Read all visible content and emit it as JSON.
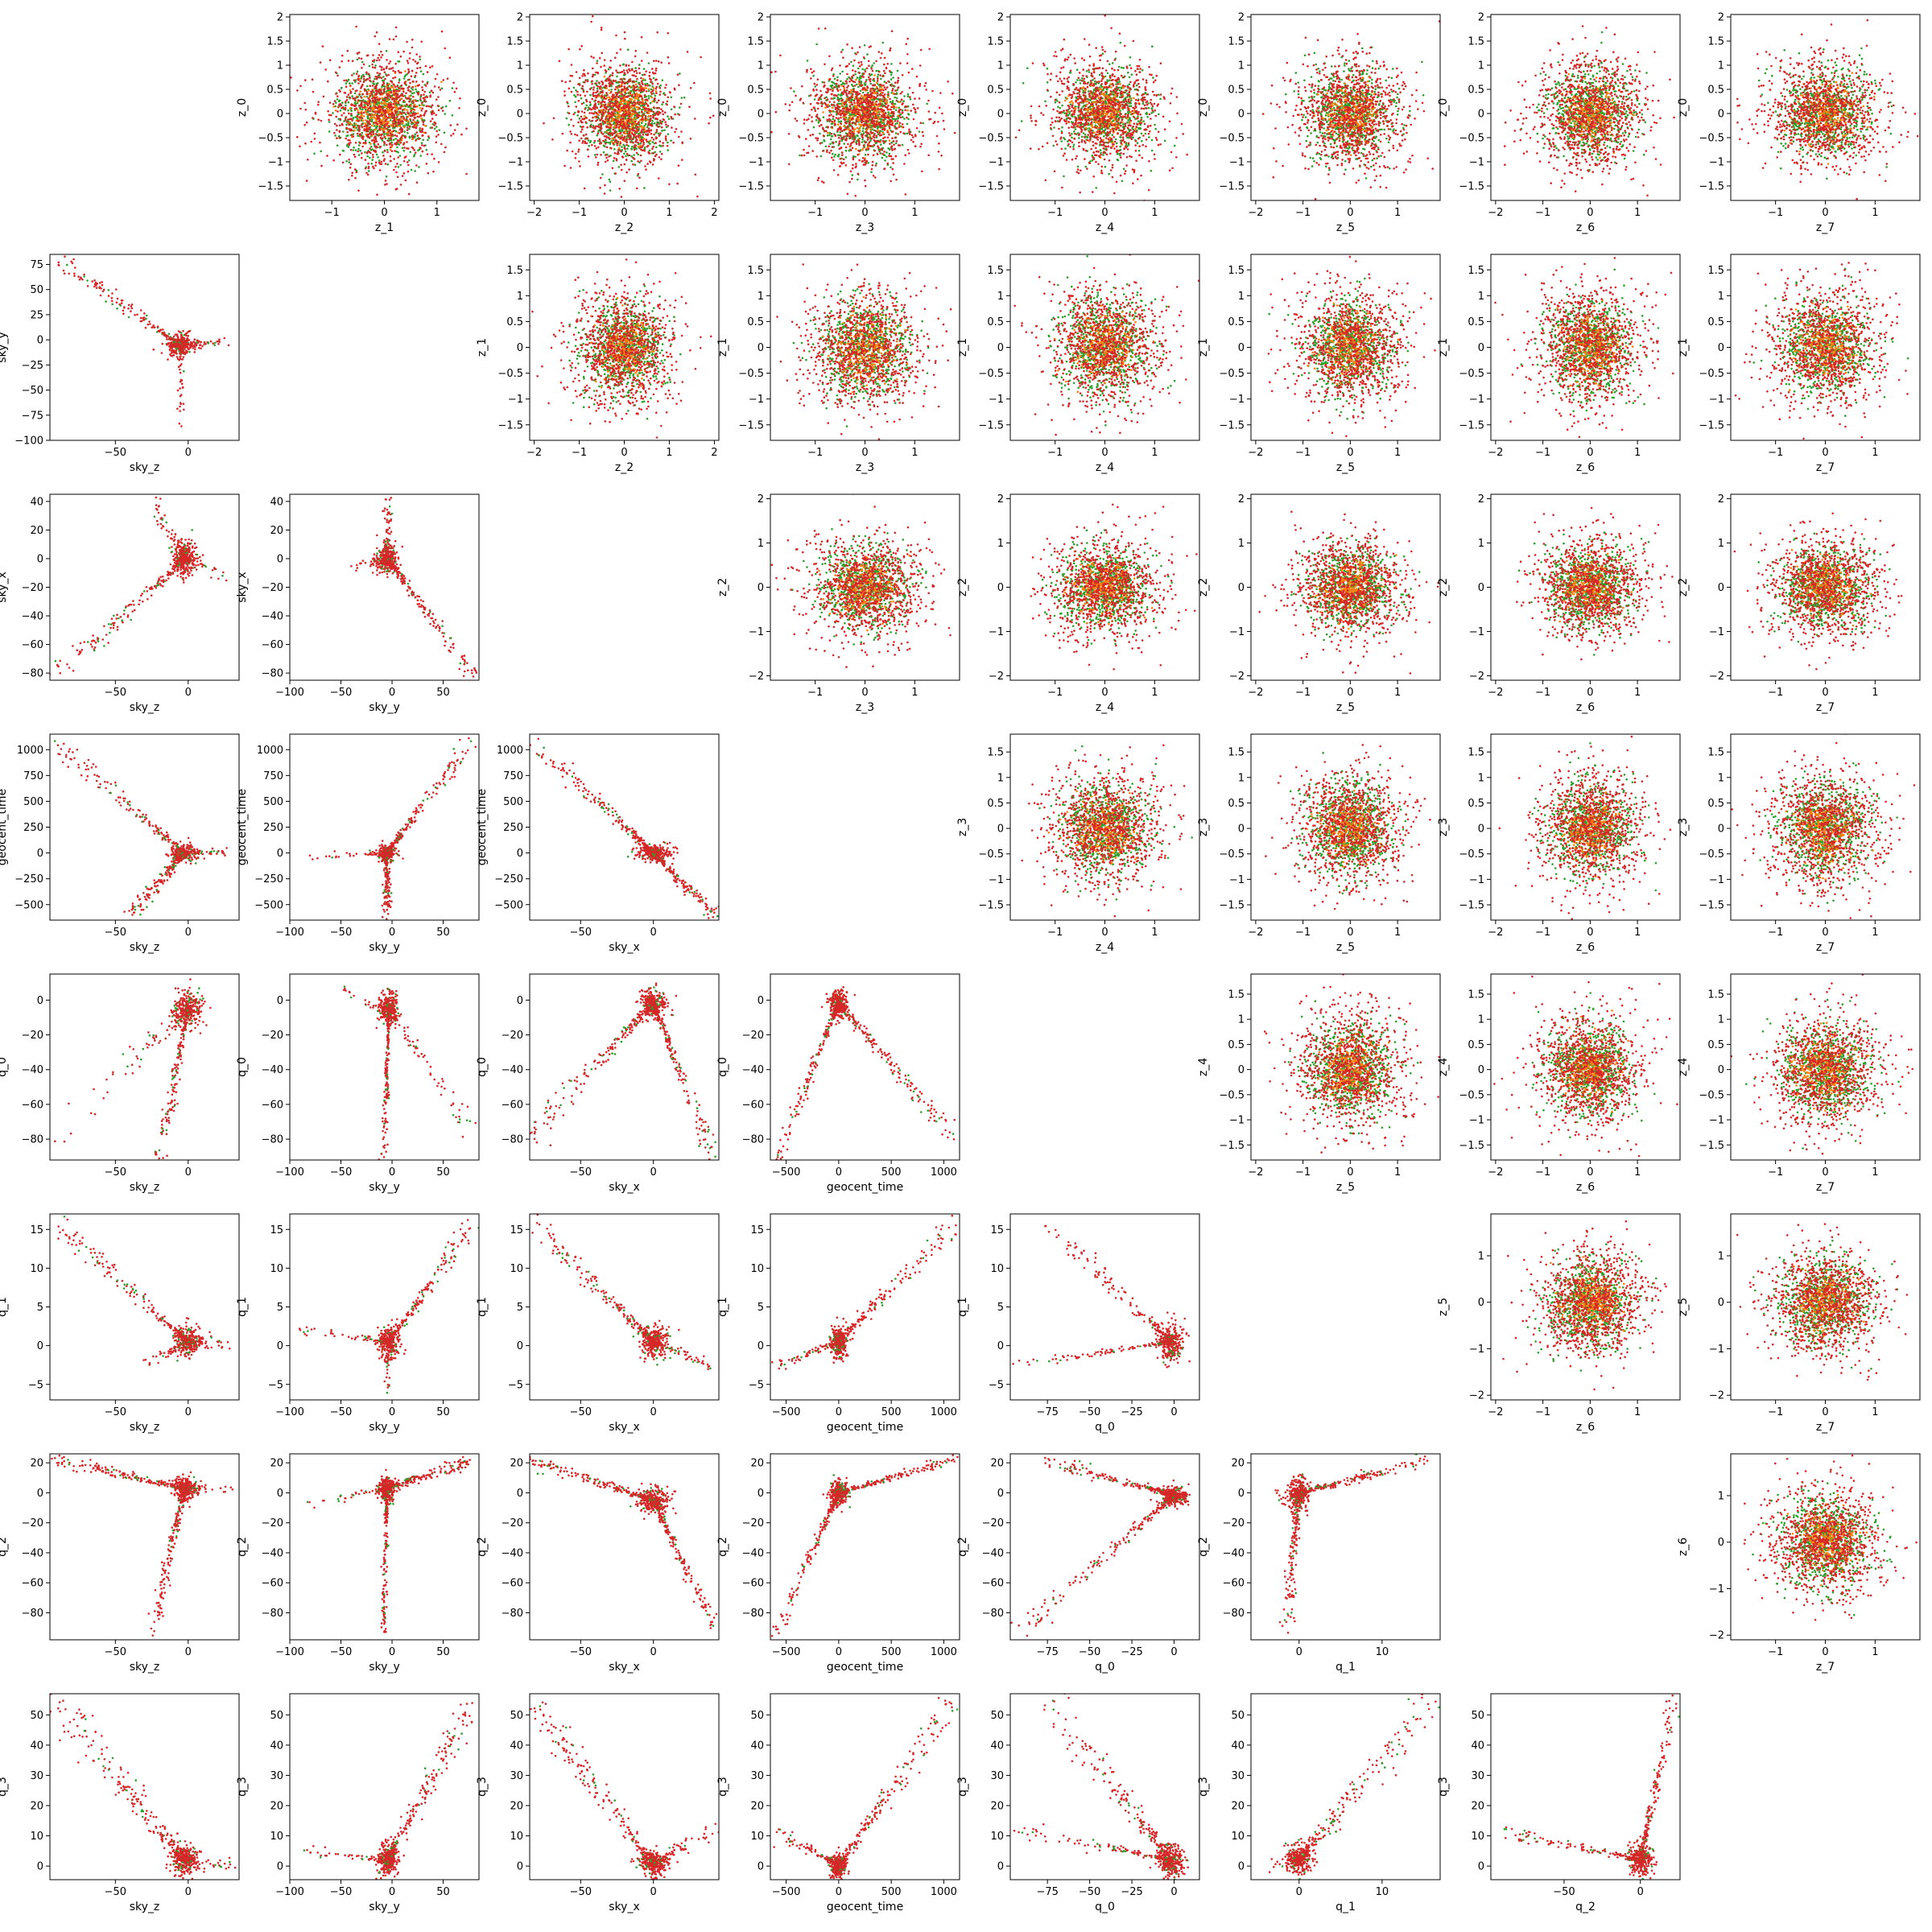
{
  "colors": {
    "green": "#2ca02c",
    "orange": "#ff7f0e",
    "red": "#d62728",
    "frame": "#000000"
  },
  "chart_data": {
    "type": "scatter",
    "layout": "8x8 pair-plot grid; lower triangle shows physical parameters, upper triangle shows latent z variables; diagonal empty",
    "variables": {
      "sky_z": {
        "label": "sky_z",
        "range": [
          -95,
          35
        ],
        "ticks": [
          -50,
          0
        ]
      },
      "sky_y": {
        "label": "sky_y",
        "range": [
          -100,
          85
        ],
        "ticks": [
          -100,
          -50,
          0,
          50
        ]
      },
      "sky_x": {
        "label": "sky_x",
        "range": [
          -85,
          45
        ],
        "ticks": [
          -50,
          0
        ]
      },
      "geocent_time": {
        "label": "geocent_time",
        "range": [
          -650,
          1150
        ],
        "ticks": [
          -500,
          0,
          500,
          1000
        ]
      },
      "q_0": {
        "label": "q_0",
        "range": [
          -97,
          15
        ],
        "ticks": [
          -75,
          -50,
          -25,
          0
        ]
      },
      "q_1": {
        "label": "q_1",
        "range": [
          -5.8,
          17
        ],
        "ticks": [
          0,
          10
        ]
      },
      "q_2": {
        "label": "q_2",
        "range": [
          -98,
          26
        ],
        "ticks": [
          -50,
          0
        ]
      },
      "q_3": {
        "label": "q_3",
        "range": [
          -4.5,
          57
        ],
        "ticks": [
          0,
          10,
          20,
          30,
          40,
          50
        ]
      },
      "q_3y": {
        "label": "q_3",
        "range": [
          -4.5,
          57
        ],
        "ticks": [
          0,
          10,
          20,
          30,
          40,
          50
        ]
      },
      "sky_y_v": {
        "label": "sky_y",
        "range": [
          -100,
          85
        ],
        "ticks": [
          -100,
          -75,
          -50,
          -25,
          0,
          25,
          50,
          75
        ]
      },
      "sky_x_v": {
        "label": "sky_x",
        "range": [
          -85,
          45
        ],
        "ticks": [
          -80,
          -60,
          -40,
          -20,
          0,
          20,
          40
        ]
      },
      "geocent_time_v": {
        "label": "geocent_time",
        "range": [
          -650,
          1150
        ],
        "ticks": [
          -500,
          -250,
          0,
          250,
          500,
          750,
          1000
        ]
      },
      "q_0_v": {
        "label": "q_0",
        "range": [
          -92,
          15
        ],
        "ticks": [
          -80,
          -60,
          -40,
          -20,
          0
        ]
      },
      "q_1_v": {
        "label": "q_1",
        "range": [
          -7,
          17
        ],
        "ticks": [
          -5,
          0,
          5,
          10,
          15
        ]
      },
      "q_2_v": {
        "label": "q_2",
        "range": [
          -98,
          26
        ],
        "ticks": [
          -80,
          -60,
          -40,
          -20,
          0,
          20
        ]
      },
      "z_0": {
        "label": "z_0",
        "range": [
          -1.8,
          2.05
        ],
        "ticks": [
          -1.5,
          -1.0,
          -0.5,
          0.0,
          0.5,
          1.0,
          1.5,
          2.0
        ]
      },
      "z_1": {
        "label": "z_1",
        "range": [
          -1.8,
          1.8
        ],
        "ticks": [
          -1.5,
          -1.0,
          -0.5,
          0.0,
          0.5,
          1.0,
          1.5
        ]
      },
      "z_1x": {
        "label": "z_1",
        "range": [
          -1.8,
          1.8
        ],
        "ticks": [
          -1,
          0,
          1
        ]
      },
      "z_2": {
        "label": "z_2",
        "range": [
          -2.1,
          2.1
        ],
        "ticks": [
          -2,
          -1,
          0,
          1,
          2
        ]
      },
      "z_3": {
        "label": "z_3",
        "range": [
          -1.9,
          1.9
        ],
        "ticks": [
          -1,
          0,
          1
        ]
      },
      "z_3y": {
        "label": "z_3",
        "range": [
          -1.8,
          1.85
        ],
        "ticks": [
          -1.5,
          -1.0,
          -0.5,
          0.0,
          0.5,
          1.0,
          1.5
        ]
      },
      "z_4": {
        "label": "z_4",
        "range": [
          -1.9,
          1.9
        ],
        "ticks": [
          -1,
          0,
          1
        ]
      },
      "z_4y": {
        "label": "z_4",
        "range": [
          -1.8,
          1.9
        ],
        "ticks": [
          -1.5,
          -1.0,
          -0.5,
          0.0,
          0.5,
          1.0,
          1.5
        ]
      },
      "z_5": {
        "label": "z_5",
        "range": [
          -2.1,
          1.9
        ],
        "ticks": [
          -2,
          -1,
          0,
          1
        ]
      },
      "z_5y": {
        "label": "z_5",
        "range": [
          -2.1,
          1.9
        ],
        "ticks": [
          -2,
          -1,
          0,
          1
        ]
      },
      "z_6": {
        "label": "z_6",
        "range": [
          -2.1,
          1.9
        ],
        "ticks": [
          -2,
          -1,
          0,
          1
        ]
      },
      "z_6y": {
        "label": "z_6",
        "range": [
          -2.1,
          1.9
        ],
        "ticks": [
          -2,
          -1,
          0,
          1
        ]
      },
      "z_7": {
        "label": "z_7",
        "range": [
          -1.9,
          1.9
        ],
        "ticks": [
          -1,
          0,
          1
        ]
      }
    },
    "panels": [
      {
        "row": 0,
        "col": 1,
        "x": "z_1x",
        "y": "z_0",
        "pattern": "gauss"
      },
      {
        "row": 0,
        "col": 2,
        "x": "z_2",
        "y": "z_0",
        "pattern": "gauss"
      },
      {
        "row": 0,
        "col": 3,
        "x": "z_3",
        "y": "z_0",
        "pattern": "gauss"
      },
      {
        "row": 0,
        "col": 4,
        "x": "z_4",
        "y": "z_0",
        "pattern": "gauss"
      },
      {
        "row": 0,
        "col": 5,
        "x": "z_5",
        "y": "z_0",
        "pattern": "gauss"
      },
      {
        "row": 0,
        "col": 6,
        "x": "z_6",
        "y": "z_0",
        "pattern": "gauss"
      },
      {
        "row": 0,
        "col": 7,
        "x": "z_7",
        "y": "z_0",
        "pattern": "gauss"
      },
      {
        "row": 1,
        "col": 0,
        "x": "sky_z",
        "y": "sky_y_v",
        "pattern": "skyz_skyy"
      },
      {
        "row": 1,
        "col": 2,
        "x": "z_2",
        "y": "z_1",
        "pattern": "gauss"
      },
      {
        "row": 1,
        "col": 3,
        "x": "z_3",
        "y": "z_1",
        "pattern": "gauss"
      },
      {
        "row": 1,
        "col": 4,
        "x": "z_4",
        "y": "z_1",
        "pattern": "gauss"
      },
      {
        "row": 1,
        "col": 5,
        "x": "z_5",
        "y": "z_1",
        "pattern": "gauss"
      },
      {
        "row": 1,
        "col": 6,
        "x": "z_6",
        "y": "z_1",
        "pattern": "gauss"
      },
      {
        "row": 1,
        "col": 7,
        "x": "z_7",
        "y": "z_1",
        "pattern": "gauss"
      },
      {
        "row": 2,
        "col": 0,
        "x": "sky_z",
        "y": "sky_x_v",
        "pattern": "skyz_skyx"
      },
      {
        "row": 2,
        "col": 1,
        "x": "sky_y",
        "y": "sky_x_v",
        "pattern": "skyy_skyx"
      },
      {
        "row": 2,
        "col": 3,
        "x": "z_3",
        "y": "z_2",
        "pattern": "gauss"
      },
      {
        "row": 2,
        "col": 4,
        "x": "z_4",
        "y": "z_2",
        "pattern": "gauss"
      },
      {
        "row": 2,
        "col": 5,
        "x": "z_5",
        "y": "z_2",
        "pattern": "gauss"
      },
      {
        "row": 2,
        "col": 6,
        "x": "z_6",
        "y": "z_2",
        "pattern": "gauss"
      },
      {
        "row": 2,
        "col": 7,
        "x": "z_7",
        "y": "z_2",
        "pattern": "gauss"
      },
      {
        "row": 3,
        "col": 0,
        "x": "sky_z",
        "y": "geocent_time_v",
        "pattern": "v_left"
      },
      {
        "row": 3,
        "col": 1,
        "x": "sky_y",
        "y": "geocent_time_v",
        "pattern": "v_right"
      },
      {
        "row": 3,
        "col": 2,
        "x": "sky_x",
        "y": "geocent_time_v",
        "pattern": "diag_down"
      },
      {
        "row": 3,
        "col": 4,
        "x": "z_4",
        "y": "z_3y",
        "pattern": "gauss"
      },
      {
        "row": 3,
        "col": 5,
        "x": "z_5",
        "y": "z_3y",
        "pattern": "gauss"
      },
      {
        "row": 3,
        "col": 6,
        "x": "z_6",
        "y": "z_3y",
        "pattern": "gauss"
      },
      {
        "row": 3,
        "col": 7,
        "x": "z_7",
        "y": "z_3y",
        "pattern": "gauss"
      },
      {
        "row": 4,
        "col": 0,
        "x": "sky_z",
        "y": "q_0_v",
        "pattern": "q0_skyz"
      },
      {
        "row": 4,
        "col": 1,
        "x": "sky_y",
        "y": "q_0_v",
        "pattern": "q0_skyy"
      },
      {
        "row": 4,
        "col": 2,
        "x": "sky_x",
        "y": "q_0_v",
        "pattern": "lambda"
      },
      {
        "row": 4,
        "col": 3,
        "x": "geocent_time",
        "y": "q_0_v",
        "pattern": "lambda"
      },
      {
        "row": 4,
        "col": 5,
        "x": "z_5",
        "y": "z_4y",
        "pattern": "gauss"
      },
      {
        "row": 4,
        "col": 6,
        "x": "z_6",
        "y": "z_4y",
        "pattern": "gauss"
      },
      {
        "row": 4,
        "col": 7,
        "x": "z_7",
        "y": "z_4y",
        "pattern": "gauss"
      },
      {
        "row": 5,
        "col": 0,
        "x": "sky_z",
        "y": "q_1_v",
        "pattern": "q1_skyz"
      },
      {
        "row": 5,
        "col": 1,
        "x": "sky_y",
        "y": "q_1_v",
        "pattern": "q1_skyy"
      },
      {
        "row": 5,
        "col": 2,
        "x": "sky_x",
        "y": "q_1_v",
        "pattern": "q1_skyx"
      },
      {
        "row": 5,
        "col": 3,
        "x": "geocent_time",
        "y": "q_1_v",
        "pattern": "q1_time"
      },
      {
        "row": 5,
        "col": 4,
        "x": "q_0",
        "y": "q_1_v",
        "pattern": "q1_q0"
      },
      {
        "row": 5,
        "col": 6,
        "x": "z_6",
        "y": "z_5y",
        "pattern": "gauss"
      },
      {
        "row": 5,
        "col": 7,
        "x": "z_7",
        "y": "z_5y",
        "pattern": "gauss"
      },
      {
        "row": 6,
        "col": 0,
        "x": "sky_z",
        "y": "q_2_v",
        "pattern": "q2_skyz"
      },
      {
        "row": 6,
        "col": 1,
        "x": "sky_y",
        "y": "q_2_v",
        "pattern": "q2_skyy"
      },
      {
        "row": 6,
        "col": 2,
        "x": "sky_x",
        "y": "q_2_v",
        "pattern": "q2_skyx"
      },
      {
        "row": 6,
        "col": 3,
        "x": "geocent_time",
        "y": "q_2_v",
        "pattern": "q2_time"
      },
      {
        "row": 6,
        "col": 4,
        "x": "q_0",
        "y": "q_2_v",
        "pattern": "q2_q0"
      },
      {
        "row": 6,
        "col": 5,
        "x": "q_1",
        "y": "q_2_v",
        "pattern": "q2_q1"
      },
      {
        "row": 6,
        "col": 7,
        "x": "z_7",
        "y": "z_6y",
        "pattern": "gauss"
      },
      {
        "row": 7,
        "col": 0,
        "x": "sky_z",
        "y": "q_3y",
        "pattern": "q3_skyz"
      },
      {
        "row": 7,
        "col": 1,
        "x": "sky_y",
        "y": "q_3y",
        "pattern": "q3_skyy"
      },
      {
        "row": 7,
        "col": 2,
        "x": "sky_x",
        "y": "q_3y",
        "pattern": "q3_skyx"
      },
      {
        "row": 7,
        "col": 3,
        "x": "geocent_time",
        "y": "q_3y",
        "pattern": "q3_time"
      },
      {
        "row": 7,
        "col": 4,
        "x": "q_0",
        "y": "q_3y",
        "pattern": "q3_q0"
      },
      {
        "row": 7,
        "col": 5,
        "x": "q_1",
        "y": "q_3y",
        "pattern": "q3_q1"
      },
      {
        "row": 7,
        "col": 6,
        "x": "q_2",
        "y": "q_3y",
        "pattern": "q3_q2"
      }
    ],
    "series": [
      {
        "color": "green"
      },
      {
        "color": "orange"
      },
      {
        "color": "red"
      }
    ],
    "grid": false,
    "legend": "none"
  }
}
